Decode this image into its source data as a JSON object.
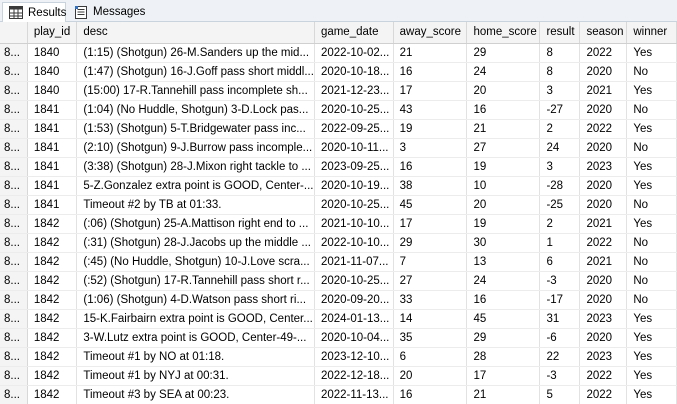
{
  "tabs": [
    {
      "label": "Results",
      "icon": "grid-icon"
    },
    {
      "label": "Messages",
      "icon": "messages-icon"
    }
  ],
  "columns": [
    "play_id",
    "desc",
    "game_date",
    "away_score",
    "home_score",
    "result",
    "season",
    "winner"
  ],
  "rows": [
    {
      "rownum": "8...",
      "cells": [
        "1840",
        "(1:15) (Shotgun) 26-M.Sanders up the mid...",
        "2022-10-02...",
        "21",
        "29",
        "8",
        "2022",
        "Yes"
      ]
    },
    {
      "rownum": "8...",
      "cells": [
        "1840",
        "(1:47) (Shotgun) 16-J.Goff pass short middl...",
        "2020-10-18...",
        "16",
        "24",
        "8",
        "2020",
        "No"
      ]
    },
    {
      "rownum": "8...",
      "cells": [
        "1840",
        "(15:00) 17-R.Tannehill pass incomplete sh...",
        "2021-12-23...",
        "17",
        "20",
        "3",
        "2021",
        "Yes"
      ]
    },
    {
      "rownum": "8...",
      "cells": [
        "1841",
        "(1:04) (No Huddle, Shotgun) 3-D.Lock pas...",
        "2020-10-25...",
        "43",
        "16",
        "-27",
        "2020",
        "No"
      ]
    },
    {
      "rownum": "8...",
      "cells": [
        "1841",
        "(1:53) (Shotgun) 5-T.Bridgewater pass inc...",
        "2022-09-25...",
        "19",
        "21",
        "2",
        "2022",
        "Yes"
      ]
    },
    {
      "rownum": "8...",
      "cells": [
        "1841",
        "(2:10) (Shotgun) 9-J.Burrow pass incomple...",
        "2020-10-11...",
        "3",
        "27",
        "24",
        "2020",
        "No"
      ]
    },
    {
      "rownum": "8...",
      "cells": [
        "1841",
        "(3:38) (Shotgun) 28-J.Mixon right tackle to ...",
        "2023-09-25...",
        "16",
        "19",
        "3",
        "2023",
        "Yes"
      ]
    },
    {
      "rownum": "8...",
      "cells": [
        "1841",
        "5-Z.Gonzalez extra point is GOOD, Center-...",
        "2020-10-19...",
        "38",
        "10",
        "-28",
        "2020",
        "Yes"
      ]
    },
    {
      "rownum": "8...",
      "cells": [
        "1841",
        "Timeout #2 by TB at 01:33.",
        "2020-10-25...",
        "45",
        "20",
        "-25",
        "2020",
        "No"
      ]
    },
    {
      "rownum": "8...",
      "cells": [
        "1842",
        "(:06) (Shotgun) 25-A.Mattison right end to ...",
        "2021-10-10...",
        "17",
        "19",
        "2",
        "2021",
        "Yes"
      ]
    },
    {
      "rownum": "8...",
      "cells": [
        "1842",
        "(:31) (Shotgun) 28-J.Jacobs up the middle ...",
        "2022-10-10...",
        "29",
        "30",
        "1",
        "2022",
        "No"
      ]
    },
    {
      "rownum": "8...",
      "cells": [
        "1842",
        "(:45) (No Huddle, Shotgun) 10-J.Love scra...",
        "2021-11-07...",
        "7",
        "13",
        "6",
        "2021",
        "No"
      ]
    },
    {
      "rownum": "8...",
      "cells": [
        "1842",
        "(:52) (Shotgun) 17-R.Tannehill pass short r...",
        "2020-10-25...",
        "27",
        "24",
        "-3",
        "2020",
        "No"
      ]
    },
    {
      "rownum": "8...",
      "cells": [
        "1842",
        "(1:06) (Shotgun) 4-D.Watson pass short ri...",
        "2020-09-20...",
        "33",
        "16",
        "-17",
        "2020",
        "No"
      ]
    },
    {
      "rownum": "8...",
      "cells": [
        "1842",
        "15-K.Fairbairn extra point is GOOD, Center...",
        "2024-01-13...",
        "14",
        "45",
        "31",
        "2023",
        "Yes"
      ]
    },
    {
      "rownum": "8...",
      "cells": [
        "1842",
        "3-W.Lutz extra point is GOOD, Center-49-...",
        "2020-10-04...",
        "35",
        "29",
        "-6",
        "2020",
        "Yes"
      ]
    },
    {
      "rownum": "8...",
      "cells": [
        "1842",
        "Timeout #1 by NO at 01:18.",
        "2023-12-10...",
        "6",
        "28",
        "22",
        "2023",
        "Yes"
      ]
    },
    {
      "rownum": "8...",
      "cells": [
        "1842",
        "Timeout #1 by NYJ at 00:31.",
        "2022-12-18...",
        "20",
        "17",
        "-3",
        "2022",
        "Yes"
      ]
    },
    {
      "rownum": "8...",
      "cells": [
        "1842",
        "Timeout #3 by SEA at 00:23.",
        "2022-11-13...",
        "16",
        "21",
        "5",
        "2022",
        "Yes"
      ]
    }
  ]
}
